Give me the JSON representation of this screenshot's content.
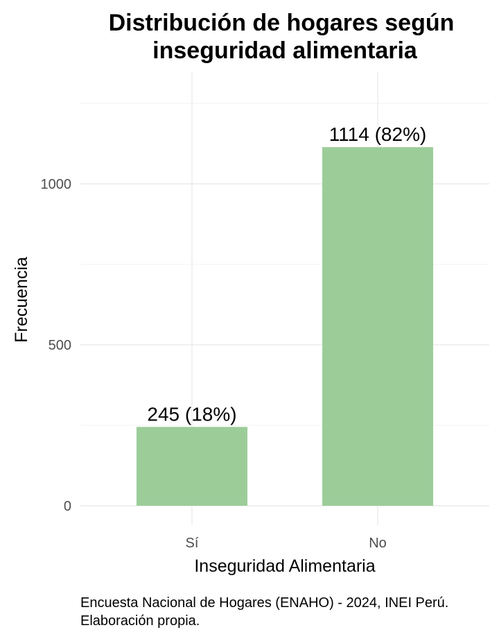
{
  "chart_data": {
    "type": "bar",
    "title_lines": [
      "Distribución de hogares según",
      "inseguridad alimentaria"
    ],
    "categories": [
      "Sí",
      "No"
    ],
    "values": [
      245,
      1114
    ],
    "data_labels": [
      "245 (18%)",
      "1114 (82%)"
    ],
    "xlabel": "Inseguridad Alimentaria",
    "ylabel": "Frecuencia",
    "ylim": [
      0,
      1250
    ],
    "y_ticks": [
      0,
      500,
      1000
    ],
    "y_tick_labels": [
      "0",
      "500",
      "1000"
    ],
    "y_minor_ticks": [
      250,
      750,
      1250
    ],
    "grid": true,
    "bar_color": "#9ccd99",
    "caption_lines": [
      "Encuesta Nacional de Hogares (ENAHO) - 2024, INEI Perú.",
      "Elaboración propia."
    ]
  }
}
